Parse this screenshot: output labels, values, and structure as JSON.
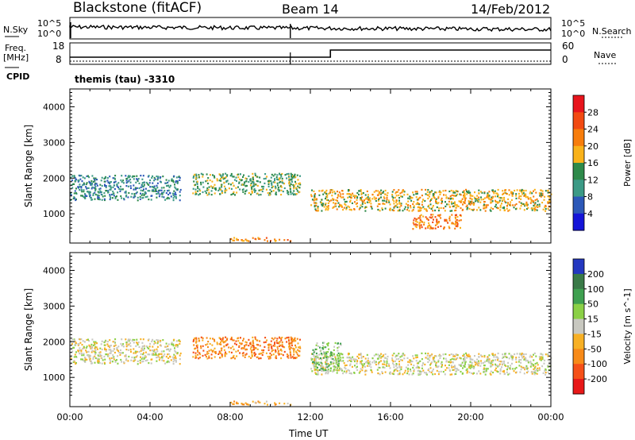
{
  "header": {
    "station": "Blackstone (fitACF)",
    "beam": "Beam 14",
    "date": "14/Feb/2012"
  },
  "param_strips": {
    "nsky_label": "N.Sky",
    "nsearch_label": "N.Search",
    "freq_label_line1": "Freq.",
    "freq_label_line2": "[MHz]",
    "cpid_label": "CPID",
    "nave_label": "Nave",
    "noise_ticks": [
      "10^5",
      "10^0"
    ],
    "freq_ticks": [
      "18",
      "8"
    ],
    "nave_ticks": [
      "60",
      "0"
    ],
    "cpid_text": "themis (tau) -3310"
  },
  "chart_data": [
    {
      "type": "heatmap",
      "panel": "power",
      "ylabel": "Slant Range [km]",
      "xlim": [
        0,
        24
      ],
      "ylim": [
        180,
        4500
      ],
      "yticks": [
        "4000",
        "3000",
        "2000",
        "1000"
      ],
      "ytick_values": [
        4000,
        3000,
        2000,
        1000
      ],
      "colorbar_label": "Power [dB]",
      "colorbar_ticks": [
        "28",
        "24",
        "20",
        "16",
        "12",
        "8",
        "4"
      ],
      "colorbar_colors": [
        "#e8141c",
        "#f24a12",
        "#f77d0c",
        "#f9b21a",
        "#2e8a4a",
        "#3c9a86",
        "#2c58b8",
        "#1414d8"
      ],
      "echo_bands": [
        {
          "t_start": 0.0,
          "t_end": 5.5,
          "range_start": 1400,
          "range_end": 2100,
          "power_db": 10
        },
        {
          "t_start": 6.0,
          "t_end": 11.5,
          "range_start": 1550,
          "range_end": 2150,
          "power_db": 14
        },
        {
          "t_start": 8.0,
          "t_end": 11.0,
          "range_start": 250,
          "range_end": 350,
          "power_db": 20
        },
        {
          "t_start": 12.0,
          "t_end": 24.0,
          "range_start": 1100,
          "range_end": 1700,
          "power_db": 18
        },
        {
          "t_start": 17.0,
          "t_end": 19.5,
          "range_start": 600,
          "range_end": 1000,
          "power_db": 22
        }
      ]
    },
    {
      "type": "heatmap",
      "panel": "velocity",
      "ylabel": "Slant Range [km]",
      "xlabel": "Time UT",
      "xlim": [
        0,
        24
      ],
      "ylim": [
        180,
        4500
      ],
      "xticks": [
        "00:00",
        "04:00",
        "08:00",
        "12:00",
        "16:00",
        "20:00",
        "00:00"
      ],
      "xtick_values": [
        0,
        4,
        8,
        12,
        16,
        20,
        24
      ],
      "yticks": [
        "4000",
        "3000",
        "2000",
        "1000"
      ],
      "ytick_values": [
        4000,
        3000,
        2000,
        1000
      ],
      "colorbar_label": "Velocity [m s^-1]",
      "colorbar_ticks": [
        "200",
        "100",
        "50",
        "15",
        "-15",
        "-50",
        "-100",
        "-200"
      ],
      "colorbar_colors": [
        "#2438c0",
        "#3a7a48",
        "#3fa050",
        "#8bd046",
        "#c8c8c0",
        "#f7b025",
        "#f78a18",
        "#f55018",
        "#e81818"
      ],
      "echo_bands": [
        {
          "t_start": 0.0,
          "t_end": 5.5,
          "range_start": 1400,
          "range_end": 2100,
          "velocity": 0
        },
        {
          "t_start": 6.0,
          "t_end": 11.5,
          "range_start": 1550,
          "range_end": 2150,
          "velocity": -70
        },
        {
          "t_start": 8.0,
          "t_end": 11.0,
          "range_start": 250,
          "range_end": 350,
          "velocity": -40
        },
        {
          "t_start": 12.0,
          "t_end": 24.0,
          "range_start": 1100,
          "range_end": 1700,
          "velocity": 0
        },
        {
          "t_start": 12.0,
          "t_end": 13.5,
          "range_start": 1200,
          "range_end": 2000,
          "velocity": 30
        }
      ]
    }
  ]
}
